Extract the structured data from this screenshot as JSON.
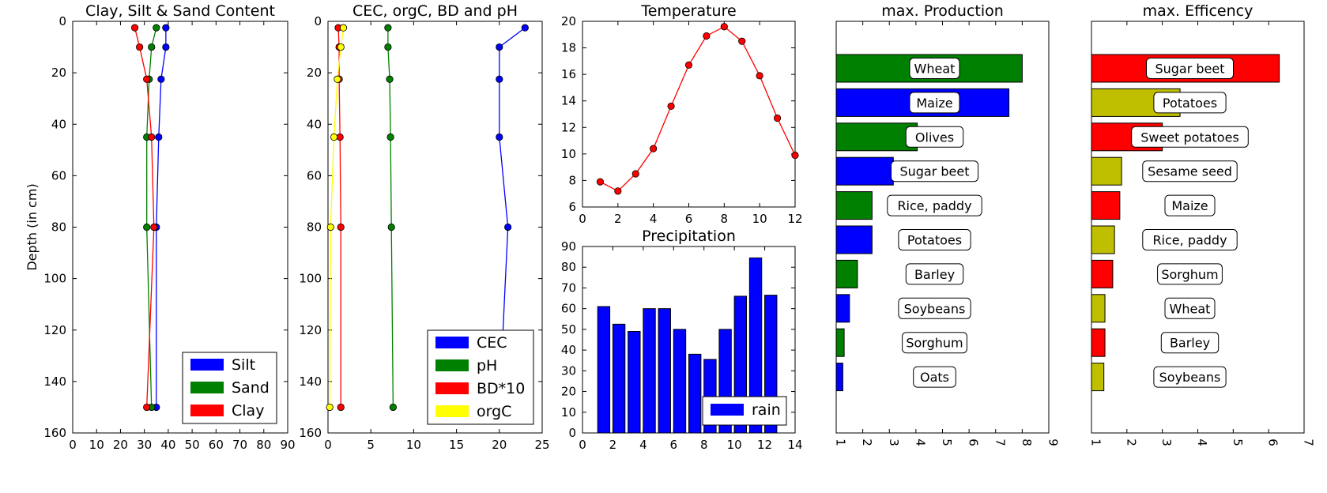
{
  "chart_data": [
    {
      "type": "line",
      "title": "Clay, Silt & Sand Content",
      "xlabel": "",
      "ylabel": "Depth (in cm)",
      "xlim": [
        0,
        90
      ],
      "ylim": [
        160,
        0
      ],
      "xticks": [
        0,
        10,
        20,
        30,
        40,
        50,
        60,
        70,
        80,
        90
      ],
      "yticks": [
        0,
        20,
        40,
        60,
        80,
        100,
        120,
        140,
        160
      ],
      "legend_position": "lower-right",
      "series": [
        {
          "name": "Silt",
          "color": "#0000ff",
          "x": [
            39,
            39,
            37,
            36,
            35,
            35
          ],
          "y": [
            2.5,
            10,
            22.5,
            45,
            80,
            150
          ]
        },
        {
          "name": "Sand",
          "color": "#008000",
          "x": [
            35,
            33,
            32,
            31,
            31,
            33
          ],
          "y": [
            2.5,
            10,
            22.5,
            45,
            80,
            150
          ]
        },
        {
          "name": "Clay",
          "color": "#ff0000",
          "x": [
            26,
            28,
            31,
            33,
            34,
            31
          ],
          "y": [
            2.5,
            10,
            22.5,
            45,
            80,
            150
          ]
        }
      ]
    },
    {
      "type": "line",
      "title": "CEC, orgC, BD and pH",
      "xlabel": "",
      "ylabel": "",
      "xlim": [
        0,
        25
      ],
      "ylim": [
        160,
        0
      ],
      "xticks": [
        0,
        5,
        10,
        15,
        20,
        25
      ],
      "yticks": [
        0,
        20,
        40,
        60,
        80,
        100,
        120,
        140,
        160
      ],
      "legend_position": "lower-right",
      "series": [
        {
          "name": "CEC",
          "color": "#0000ff",
          "x": [
            23,
            20,
            20,
            20,
            21,
            20
          ],
          "y": [
            2.5,
            10,
            22.5,
            45,
            80,
            150
          ]
        },
        {
          "name": "pH",
          "color": "#008000",
          "x": [
            7,
            7,
            7.2,
            7.3,
            7.4,
            7.6
          ],
          "y": [
            2.5,
            10,
            22.5,
            45,
            80,
            150
          ]
        },
        {
          "name": "BD*10",
          "color": "#ff0000",
          "x": [
            1.2,
            1.3,
            1.3,
            1.4,
            1.5,
            1.5
          ],
          "y": [
            2.5,
            10,
            22.5,
            45,
            80,
            150
          ]
        },
        {
          "name": "orgC",
          "color": "#ffff00",
          "x": [
            1.8,
            1.5,
            1.1,
            0.7,
            0.3,
            0.2
          ],
          "y": [
            2.5,
            10,
            22.5,
            45,
            80,
            150
          ]
        }
      ]
    },
    {
      "type": "line",
      "title": "Temperature",
      "xlim": [
        0,
        12
      ],
      "ylim": [
        6,
        20
      ],
      "xticks": [
        0,
        2,
        4,
        6,
        8,
        10,
        12
      ],
      "yticks": [
        6,
        8,
        10,
        12,
        14,
        16,
        18,
        20
      ],
      "series": [
        {
          "color": "#ff0000",
          "x": [
            1,
            2,
            3,
            4,
            5,
            6,
            7,
            8,
            9,
            10,
            11,
            12
          ],
          "y": [
            7.9,
            7.2,
            8.5,
            10.4,
            13.6,
            16.7,
            18.9,
            19.6,
            18.5,
            15.9,
            12.7,
            9.9
          ]
        }
      ]
    },
    {
      "type": "bar",
      "title": "Precipitation",
      "xlim": [
        0,
        14
      ],
      "ylim": [
        0,
        90
      ],
      "xticks": [
        0,
        2,
        4,
        6,
        8,
        10,
        12,
        14
      ],
      "yticks": [
        0,
        10,
        20,
        30,
        40,
        50,
        60,
        70,
        80,
        90
      ],
      "legend_position": "lower-right",
      "categories": [
        1,
        2,
        3,
        4,
        5,
        6,
        7,
        8,
        9,
        10,
        11,
        12
      ],
      "series": [
        {
          "name": "rain",
          "color": "#0000ff",
          "values": [
            61,
            52.5,
            49,
            60,
            60,
            50,
            38,
            35.5,
            50,
            66,
            84.5,
            66.5
          ]
        }
      ]
    },
    {
      "type": "bar",
      "orientation": "horizontal",
      "title": "max. Production",
      "xlim": [
        1,
        9
      ],
      "xticks": [
        1,
        2,
        3,
        4,
        5,
        6,
        7,
        8,
        9
      ],
      "tick_label_rotation": "vertical",
      "categories": [
        "Wheat",
        "Maize",
        "Olives",
        "Sugar beet",
        "Rice, paddy",
        "Potatoes",
        "Barley",
        "Soybeans",
        "Sorghum",
        "Oats"
      ],
      "values": [
        8.0,
        7.5,
        4.05,
        3.15,
        2.35,
        2.35,
        1.8,
        1.5,
        1.3,
        1.25
      ],
      "colors": [
        "#008000",
        "#0000ff",
        "#008000",
        "#0000ff",
        "#008000",
        "#0000ff",
        "#008000",
        "#0000ff",
        "#008000",
        "#0000ff"
      ]
    },
    {
      "type": "bar",
      "orientation": "horizontal",
      "title": "max. Efficency",
      "xlim": [
        1,
        7
      ],
      "xticks": [
        1,
        2,
        3,
        4,
        5,
        6,
        7
      ],
      "tick_label_rotation": "vertical",
      "categories": [
        "Sugar beet",
        "Potatoes",
        "Sweet potatoes",
        "Sesame seed",
        "Maize",
        "Rice, paddy",
        "Sorghum",
        "Wheat",
        "Barley",
        "Soybeans"
      ],
      "values": [
        6.3,
        3.5,
        3.0,
        1.85,
        1.8,
        1.65,
        1.6,
        1.38,
        1.38,
        1.35
      ],
      "colors": [
        "#ff0000",
        "#bfbf00",
        "#ff0000",
        "#bfbf00",
        "#ff0000",
        "#bfbf00",
        "#ff0000",
        "#bfbf00",
        "#ff0000",
        "#bfbf00"
      ]
    }
  ]
}
